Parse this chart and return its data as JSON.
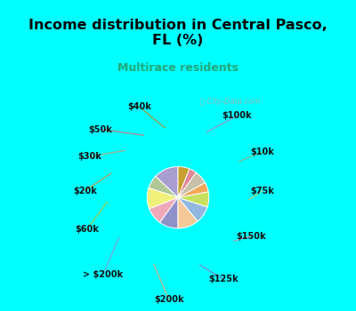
{
  "title": "Income distribution in Central Pasco,\nFL (%)",
  "subtitle": "Multirace residents",
  "labels": [
    "$100k",
    "$10k",
    "$75k",
    "$150k",
    "$125k",
    "$200k",
    "> $200k",
    "$60k",
    "$20k",
    "$30k",
    "$50k",
    "$40k"
  ],
  "values": [
    13,
    7,
    11,
    9,
    10,
    11,
    9,
    8,
    5,
    7,
    4,
    6
  ],
  "colors": [
    "#a89ed0",
    "#b0c898",
    "#f0f07a",
    "#f0a8b8",
    "#9090c8",
    "#f5c898",
    "#90b8e0",
    "#c8e060",
    "#f0a858",
    "#c8c0a8",
    "#e08898",
    "#c8a030"
  ],
  "bg_color": "#d0eed8",
  "title_bg": "#00ffff",
  "watermark": "City-Data.com",
  "startangle": 90,
  "fig_width": 4.0,
  "fig_height": 3.5,
  "dpi": 100
}
